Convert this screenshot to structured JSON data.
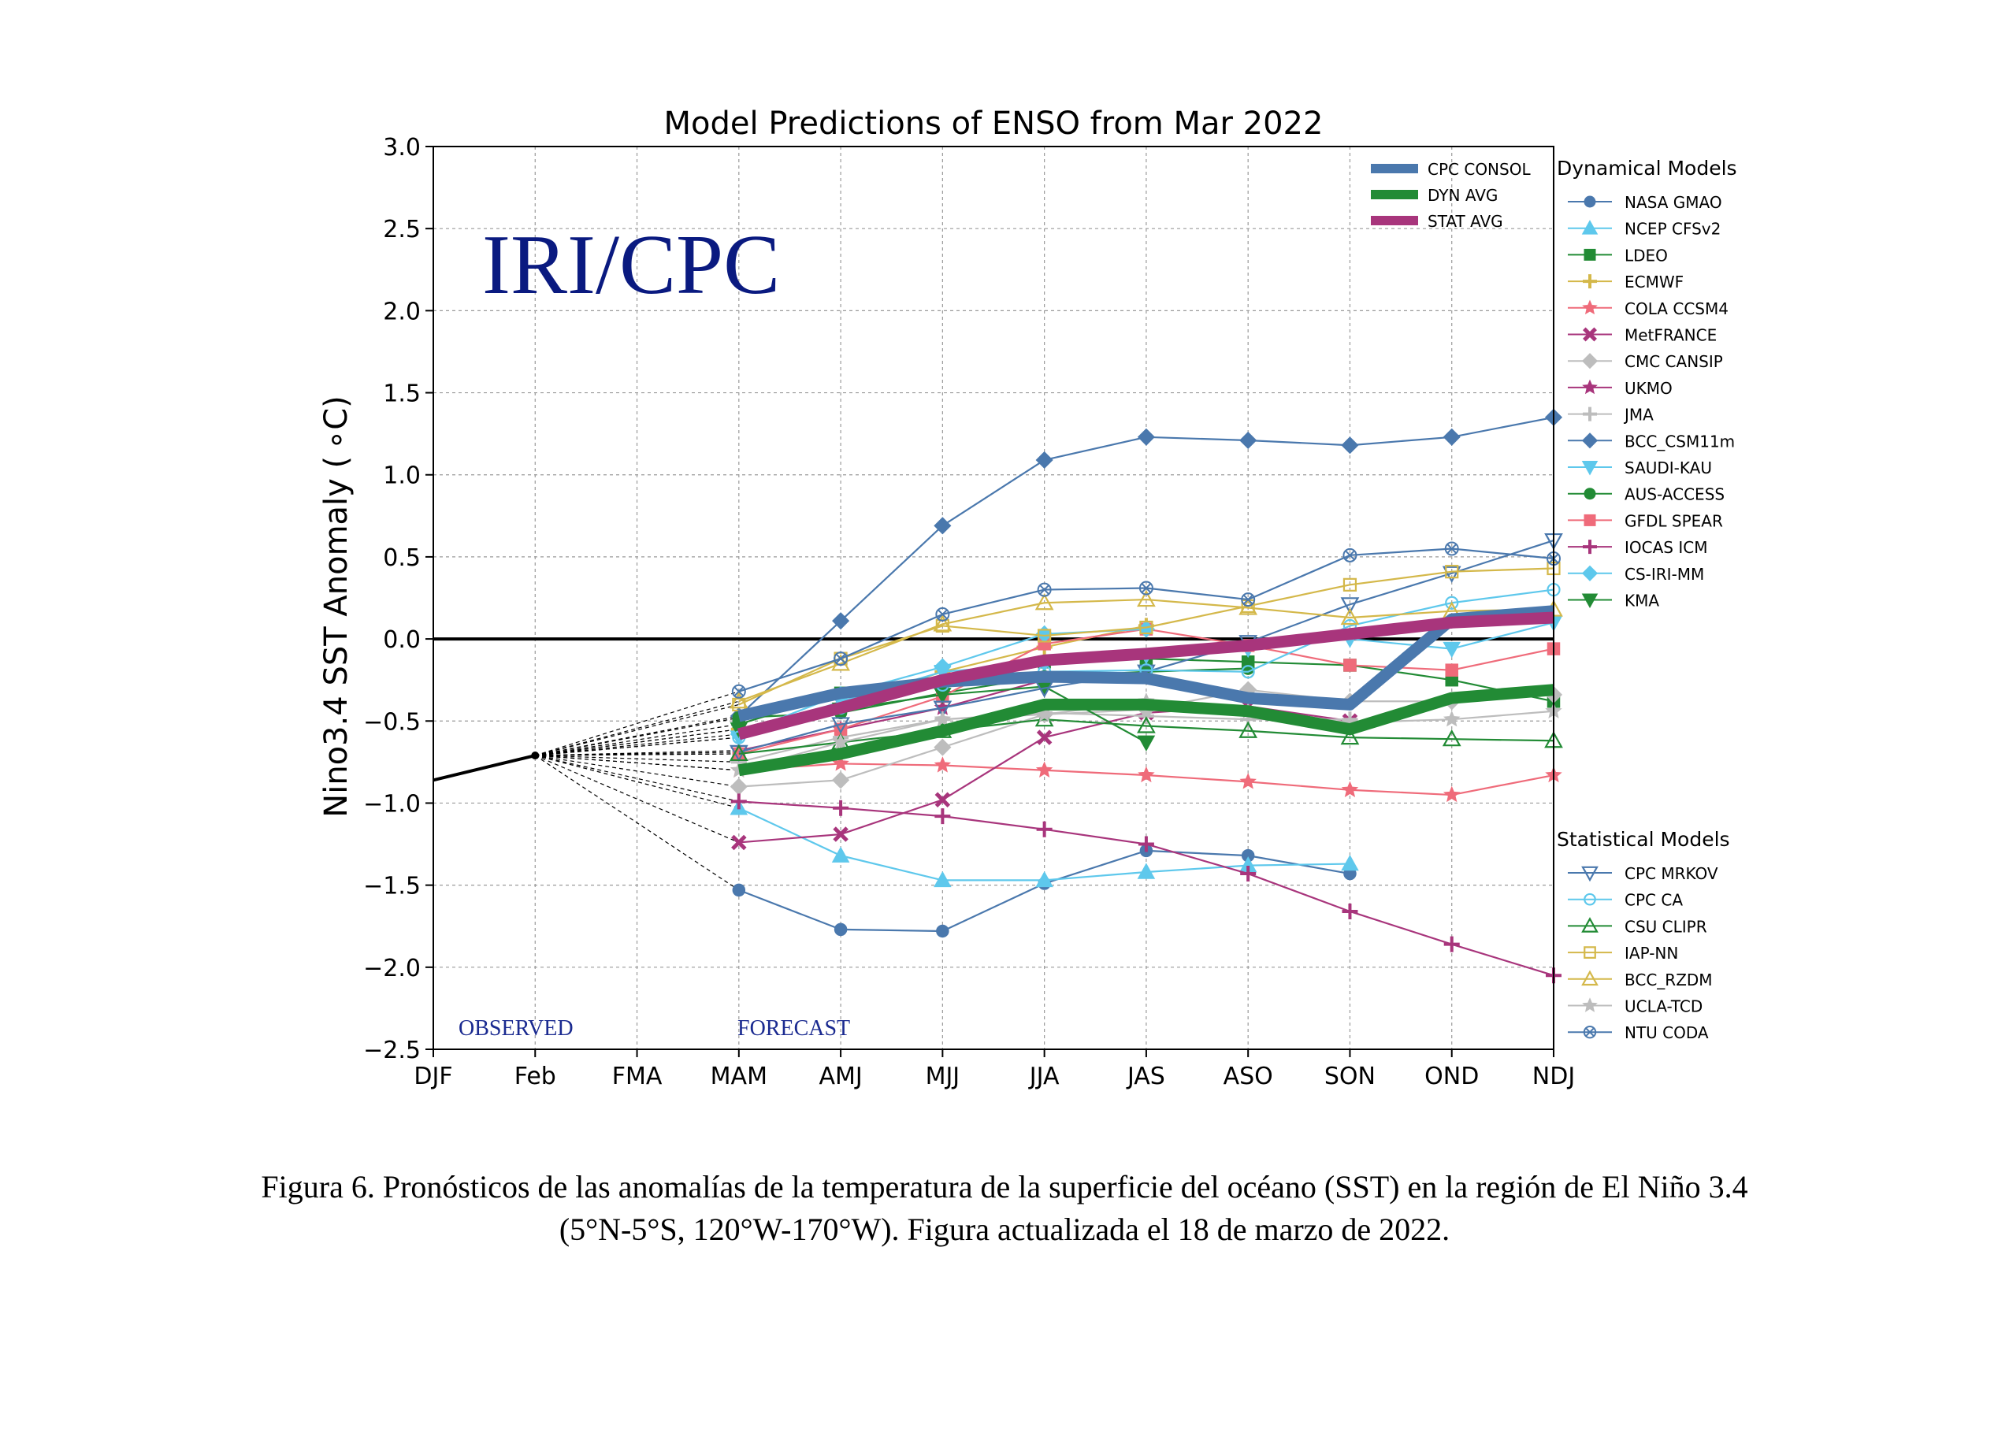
{
  "chart_data": {
    "type": "line",
    "title": "Model Predictions of ENSO from Mar 2022",
    "ylabel": "Nino3.4 SST Anomaly ( ∘C)",
    "ylim": [
      -2.5,
      3.0
    ],
    "yticks": [
      "3.0",
      "2.5",
      "2.0",
      "1.5",
      "1.0",
      "0.5",
      "0.0",
      "−0.5",
      "−1.0",
      "−1.5",
      "−2.0",
      "−2.5"
    ],
    "categories": [
      "DJF",
      "Feb",
      "FMA",
      "MAM",
      "AMJ",
      "MJJ",
      "JJA",
      "JAS",
      "ASO",
      "SON",
      "OND",
      "NDJ"
    ],
    "grid": true,
    "watermark": "IRI/CPC",
    "observed_label": "OBSERVED",
    "forecast_label": "FORECAST",
    "observed": [
      -0.86,
      -0.71
    ],
    "legend_dynamical_title": "Dynamical Models",
    "legend_statistical_title": "Statistical Models",
    "consensus": [
      {
        "name": "CPC CONSOL",
        "color": "#4a78ad",
        "values": [
          null,
          null,
          null,
          -0.47,
          -0.33,
          -0.26,
          -0.23,
          -0.24,
          -0.36,
          -0.4,
          0.12,
          0.17
        ]
      },
      {
        "name": "DYN AVG",
        "color": "#228b35",
        "values": [
          null,
          null,
          null,
          -0.8,
          -0.7,
          -0.56,
          -0.4,
          -0.4,
          -0.44,
          -0.55,
          -0.36,
          -0.31
        ]
      },
      {
        "name": "STAT AVG",
        "color": "#a8357c",
        "values": [
          null,
          null,
          null,
          -0.58,
          -0.42,
          -0.25,
          -0.13,
          -0.09,
          -0.04,
          0.03,
          0.1,
          0.13
        ]
      }
    ],
    "dynamical": [
      {
        "name": "NASA GMAO",
        "color": "#4a78ad",
        "marker": "circle",
        "values": [
          null,
          null,
          null,
          -1.53,
          -1.77,
          -1.78,
          -1.49,
          -1.29,
          -1.32,
          -1.43,
          null,
          null
        ]
      },
      {
        "name": "NCEP CFSv2",
        "color": "#5ec8ec",
        "marker": "triangle-up",
        "values": [
          null,
          null,
          null,
          -1.03,
          -1.32,
          -1.47,
          -1.47,
          -1.42,
          -1.38,
          -1.37,
          null,
          null
        ]
      },
      {
        "name": "LDEO",
        "color": "#228b35",
        "marker": "square",
        "values": [
          null,
          null,
          null,
          -0.52,
          -0.33,
          -0.27,
          -0.14,
          -0.12,
          -0.14,
          -0.16,
          -0.25,
          -0.38
        ]
      },
      {
        "name": "ECMWF",
        "color": "#d4b84a",
        "marker": "plus",
        "values": [
          null,
          null,
          null,
          -0.55,
          -0.4,
          -0.2,
          -0.05,
          0.08,
          null,
          null,
          null,
          null
        ]
      },
      {
        "name": "COLA CCSM4",
        "color": "#ef6b7a",
        "marker": "star",
        "values": [
          null,
          null,
          null,
          -0.8,
          -0.76,
          -0.77,
          -0.8,
          -0.83,
          -0.87,
          -0.92,
          -0.95,
          -0.83
        ]
      },
      {
        "name": "MetFRANCE",
        "color": "#a8357c",
        "marker": "x",
        "values": [
          null,
          null,
          null,
          -1.24,
          -1.19,
          -0.98,
          -0.6,
          -0.45,
          -0.41,
          -0.5,
          null,
          null
        ]
      },
      {
        "name": "CMC CANSIP",
        "color": "#bdbdbd",
        "marker": "diamond",
        "values": [
          null,
          null,
          null,
          -0.9,
          -0.86,
          -0.66,
          -0.46,
          -0.43,
          -0.31,
          -0.38,
          -0.38,
          -0.34
        ]
      },
      {
        "name": "UKMO",
        "color": "#a8357c",
        "marker": "star",
        "values": [
          null,
          null,
          null,
          -0.68,
          -0.55,
          -0.42,
          -0.25,
          null,
          null,
          null,
          null,
          null
        ]
      },
      {
        "name": "JMA",
        "color": "#bdbdbd",
        "marker": "plus",
        "values": [
          null,
          null,
          null,
          -0.75,
          -0.6,
          -0.49,
          -0.45,
          -0.47,
          -0.49,
          -0.49,
          null,
          null
        ]
      },
      {
        "name": "BCC_CSM11m",
        "color": "#4a78ad",
        "marker": "diamond",
        "values": [
          null,
          null,
          null,
          -0.47,
          0.11,
          0.69,
          1.09,
          1.23,
          1.21,
          1.18,
          1.23,
          1.35
        ]
      },
      {
        "name": "SAUDI-KAU",
        "color": "#5ec8ec",
        "marker": "triangle-down",
        "values": [
          null,
          null,
          null,
          -0.6,
          -0.38,
          -0.2,
          -0.15,
          -0.1,
          -0.06,
          0.0,
          -0.06,
          0.1
        ]
      },
      {
        "name": "AUS-ACCESS",
        "color": "#228b35",
        "marker": "circle",
        "values": [
          null,
          null,
          null,
          -0.48,
          -0.45,
          -0.33,
          -0.23,
          -0.2,
          -0.18,
          null,
          null,
          null
        ]
      },
      {
        "name": "GFDL SPEAR",
        "color": "#ef6b7a",
        "marker": "square",
        "values": [
          null,
          null,
          null,
          -0.7,
          -0.55,
          -0.35,
          -0.03,
          0.06,
          -0.04,
          -0.16,
          -0.19,
          -0.06
        ]
      },
      {
        "name": "IOCAS ICM",
        "color": "#a8357c",
        "marker": "plus",
        "values": [
          null,
          null,
          null,
          -0.99,
          -1.03,
          -1.08,
          -1.16,
          -1.25,
          -1.43,
          -1.66,
          -1.86,
          -2.05
        ]
      },
      {
        "name": "CS-IRI-MM",
        "color": "#5ec8ec",
        "marker": "diamond",
        "values": [
          null,
          null,
          null,
          -0.58,
          -0.34,
          -0.17,
          0.03,
          0.06,
          null,
          null,
          null,
          null
        ]
      },
      {
        "name": "KMA",
        "color": "#228b35",
        "marker": "triangle-down",
        "values": [
          null,
          null,
          null,
          -0.55,
          -0.43,
          -0.34,
          -0.29,
          -0.63,
          null,
          null,
          null,
          null
        ]
      }
    ],
    "statistical": [
      {
        "name": "CPC MRKOV",
        "color": "#4a78ad",
        "marker": "triangle-down-open",
        "values": [
          null,
          null,
          null,
          -0.69,
          -0.52,
          -0.42,
          -0.3,
          -0.2,
          -0.02,
          0.21,
          0.4,
          0.6
        ]
      },
      {
        "name": "CPC CA",
        "color": "#5ec8ec",
        "marker": "circle-open",
        "values": [
          null,
          null,
          null,
          -0.6,
          -0.42,
          -0.28,
          -0.2,
          -0.19,
          -0.2,
          0.08,
          0.22,
          0.3
        ]
      },
      {
        "name": "CSU CLIPR",
        "color": "#228b35",
        "marker": "triangle-up-open",
        "values": [
          null,
          null,
          null,
          -0.7,
          -0.63,
          -0.56,
          -0.49,
          -0.53,
          -0.56,
          -0.6,
          -0.61,
          -0.62
        ]
      },
      {
        "name": "IAP-NN",
        "color": "#d4b84a",
        "marker": "square-open",
        "values": [
          null,
          null,
          null,
          -0.4,
          -0.12,
          0.08,
          0.02,
          0.07,
          0.2,
          0.33,
          0.41,
          0.43
        ]
      },
      {
        "name": "BCC_RZDM",
        "color": "#d4b84a",
        "marker": "triangle-up-open",
        "values": [
          null,
          null,
          null,
          -0.38,
          -0.15,
          0.09,
          0.22,
          0.24,
          0.19,
          0.13,
          0.17,
          0.18
        ]
      },
      {
        "name": "UCLA-TCD",
        "color": "#bdbdbd",
        "marker": "star",
        "values": [
          null,
          null,
          null,
          -0.8,
          -0.63,
          -0.49,
          -0.46,
          -0.38,
          -0.44,
          -0.51,
          -0.49,
          -0.44
        ]
      },
      {
        "name": "NTU CODA",
        "color": "#4a78ad",
        "marker": "circle-x-open",
        "values": [
          null,
          null,
          null,
          -0.32,
          -0.12,
          0.15,
          0.3,
          0.31,
          0.24,
          0.51,
          0.55,
          0.49
        ]
      }
    ]
  },
  "caption": {
    "line1": "Figura 6. Pronósticos de las anomalías de la temperatura de la superficie del océano (SST) en la región de El Niño 3.4",
    "line2": "(5°N-5°S, 120°W-170°W). Figura actualizada el 18 de marzo de 2022."
  }
}
